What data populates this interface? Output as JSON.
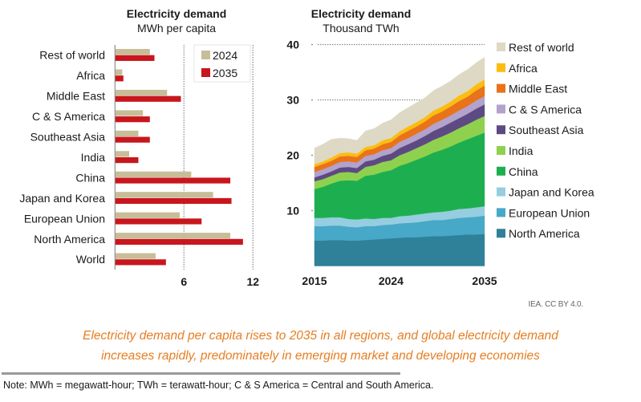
{
  "left_title": {
    "line1": "Electricity demand",
    "line2": "MWh per capita"
  },
  "right_title": {
    "line1": "Electricity demand",
    "line2": "Thousand TWh"
  },
  "source": "IEA. CC BY 4.0.",
  "caption": {
    "line1": "Electricity demand per capita rises to 2035 in all regions, and global electricity demand",
    "line2": "increases rapidly, predominately in emerging market and developing economies"
  },
  "note": "Note: MWh = megawatt-hour; TWh = terawatt-hour; C & S America = Central and South America.",
  "colors": {
    "bar_2024": "#c7bd98",
    "bar_2035": "#c8161d",
    "caption": "#e67e22"
  },
  "chart_data": [
    {
      "type": "bar",
      "orientation": "horizontal",
      "title": "Electricity demand",
      "subtitle": "MWh per capita",
      "xlabel": "",
      "ylabel": "",
      "xlim": [
        0,
        12
      ],
      "xticks": [
        6,
        12
      ],
      "grid": "vertical dotted",
      "legend_position": "top-right",
      "categories": [
        "Rest of world",
        "Africa",
        "Middle East",
        "C & S America",
        "Southeast Asia",
        "India",
        "China",
        "Japan and Korea",
        "European Union",
        "North America",
        "World"
      ],
      "series": [
        {
          "name": "2024",
          "color": "#c7bd98",
          "values": [
            3.0,
            0.6,
            4.5,
            2.4,
            2.0,
            1.2,
            6.6,
            8.5,
            5.6,
            10.0,
            3.5
          ]
        },
        {
          "name": "2035",
          "color": "#c8161d",
          "values": [
            3.4,
            0.7,
            5.7,
            3.0,
            3.0,
            2.0,
            10.0,
            10.1,
            7.5,
            11.1,
            4.4
          ]
        }
      ]
    },
    {
      "type": "area",
      "stacked": true,
      "title": "Electricity demand",
      "subtitle": "Thousand TWh",
      "xlabel": "",
      "ylabel": "",
      "ylim": [
        0,
        40
      ],
      "yticks": [
        10,
        20,
        30,
        40
      ],
      "xlim": [
        2015,
        2035
      ],
      "xticks": [
        2015,
        2024,
        2035
      ],
      "grid": "dotted at 30 and 40",
      "legend_position": "right",
      "x": [
        2015,
        2016,
        2017,
        2018,
        2019,
        2020,
        2021,
        2022,
        2023,
        2024,
        2025,
        2026,
        2027,
        2028,
        2029,
        2030,
        2031,
        2032,
        2033,
        2034,
        2035
      ],
      "series": [
        {
          "name": "North America",
          "color": "#2e8199",
          "values": [
            4.6,
            4.6,
            4.7,
            4.7,
            4.6,
            4.6,
            4.7,
            4.8,
            4.9,
            5.0,
            5.1,
            5.2,
            5.2,
            5.3,
            5.4,
            5.4,
            5.5,
            5.6,
            5.7,
            5.7,
            5.8
          ]
        },
        {
          "name": "European Union",
          "color": "#47a8c8",
          "values": [
            2.6,
            2.6,
            2.6,
            2.6,
            2.5,
            2.4,
            2.5,
            2.4,
            2.5,
            2.5,
            2.6,
            2.6,
            2.7,
            2.8,
            2.9,
            2.9,
            3.0,
            3.1,
            3.1,
            3.2,
            3.3
          ]
        },
        {
          "name": "Japan and Korea",
          "color": "#96cde0",
          "values": [
            1.5,
            1.5,
            1.5,
            1.5,
            1.4,
            1.4,
            1.4,
            1.3,
            1.3,
            1.2,
            1.3,
            1.3,
            1.4,
            1.4,
            1.4,
            1.5,
            1.5,
            1.6,
            1.6,
            1.7,
            1.7
          ]
        },
        {
          "name": "China",
          "color": "#1daf4f",
          "values": [
            5.2,
            5.6,
            6.1,
            6.6,
            7.0,
            7.0,
            7.7,
            8.0,
            8.3,
            8.6,
            9.1,
            9.5,
            9.9,
            10.3,
            10.8,
            11.2,
            11.6,
            12.0,
            12.5,
            12.9,
            13.3
          ]
        },
        {
          "name": "India",
          "color": "#8fd14f",
          "values": [
            1.4,
            1.4,
            1.4,
            1.5,
            1.5,
            1.4,
            1.6,
            1.7,
            1.8,
            1.8,
            1.9,
            2.0,
            2.1,
            2.2,
            2.3,
            2.4,
            2.5,
            2.6,
            2.7,
            2.9,
            3.0
          ]
        },
        {
          "name": "Southeast Asia",
          "color": "#5e4a82",
          "values": [
            0.7,
            0.8,
            0.8,
            0.9,
            0.9,
            0.9,
            1.0,
            1.0,
            1.1,
            1.2,
            1.3,
            1.4,
            1.4,
            1.5,
            1.6,
            1.7,
            1.8,
            1.8,
            1.9,
            2.0,
            2.1
          ]
        },
        {
          "name": "C & S America",
          "color": "#b3a2cc",
          "values": [
            1.0,
            1.0,
            1.0,
            1.0,
            1.0,
            1.0,
            1.0,
            1.0,
            1.0,
            1.0,
            1.1,
            1.1,
            1.2,
            1.2,
            1.3,
            1.3,
            1.3,
            1.4,
            1.4,
            1.5,
            1.5
          ]
        },
        {
          "name": "Middle East",
          "color": "#e8731a",
          "values": [
            0.9,
            0.9,
            0.9,
            1.0,
            1.0,
            1.0,
            1.0,
            1.0,
            1.1,
            1.1,
            1.2,
            1.3,
            1.3,
            1.4,
            1.5,
            1.5,
            1.6,
            1.7,
            1.7,
            1.8,
            1.9
          ]
        },
        {
          "name": "Africa",
          "color": "#fdbc12",
          "values": [
            0.5,
            0.5,
            0.6,
            0.6,
            0.6,
            0.6,
            0.6,
            0.6,
            0.7,
            0.7,
            0.7,
            0.8,
            0.8,
            0.8,
            0.9,
            0.9,
            0.9,
            1.0,
            1.0,
            1.1,
            1.1
          ]
        },
        {
          "name": "Rest of world",
          "color": "#ddd9c4",
          "values": [
            2.9,
            3.1,
            3.3,
            2.7,
            2.5,
            2.4,
            2.9,
            3.0,
            3.1,
            3.3,
            3.4,
            3.4,
            3.5,
            3.5,
            3.6,
            3.7,
            3.7,
            3.8,
            3.9,
            3.9,
            4.0
          ]
        }
      ]
    }
  ]
}
